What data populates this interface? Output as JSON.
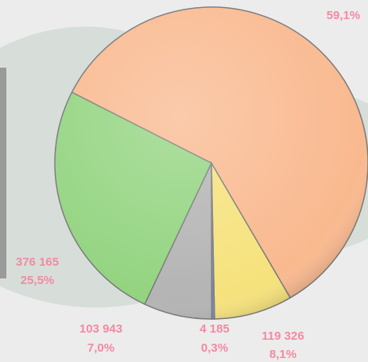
{
  "chart_data": {
    "type": "pie",
    "values": [
      872222,
      119326,
      4185,
      103943,
      376165
    ],
    "value_labels": [
      null,
      "119 326",
      "4 185",
      "103 943",
      "376 165"
    ],
    "percents": [
      59.1,
      8.1,
      0.3,
      7.0,
      25.5
    ],
    "percent_labels": [
      "59,1%",
      "8,1%",
      "0,3%",
      "7,0%",
      "25,5%"
    ],
    "colors": [
      "#f9b98f",
      "#f6e27c",
      "#6d90c4",
      "#b4b4b4",
      "#93d480"
    ]
  }
}
